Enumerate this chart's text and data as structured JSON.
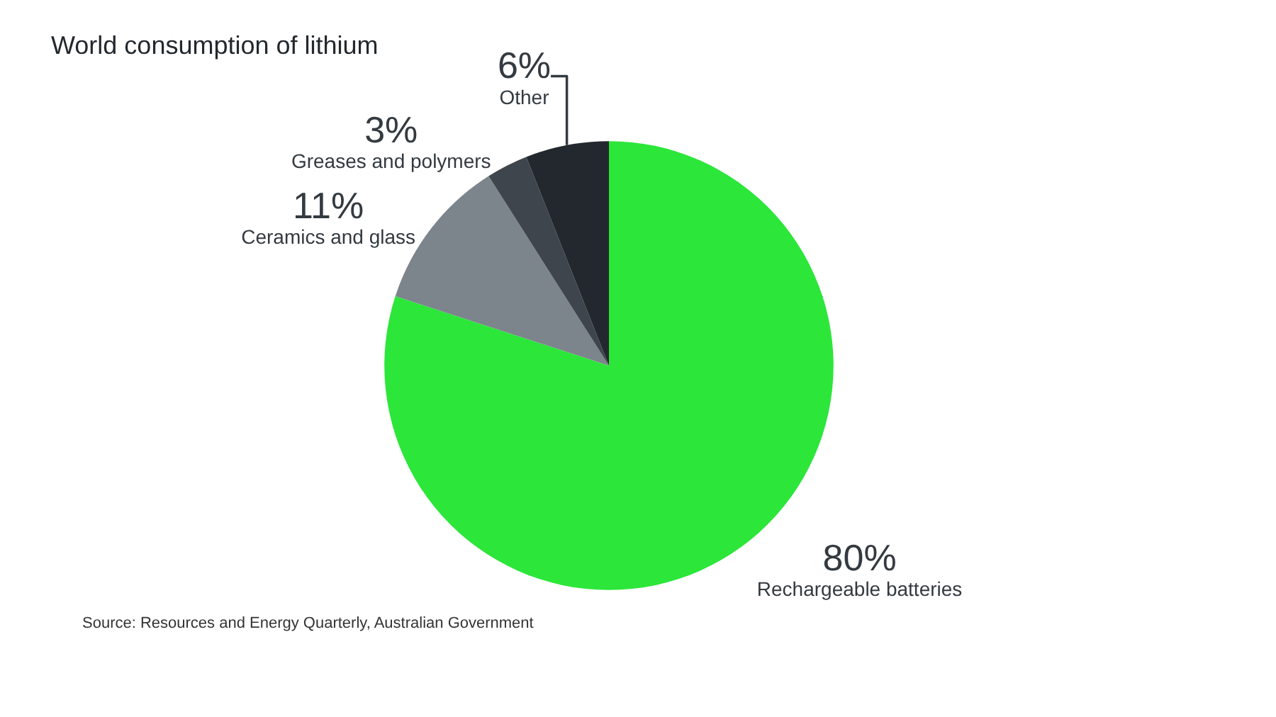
{
  "chart_data": {
    "type": "pie",
    "title": "World consumption of lithium",
    "categories": [
      "Rechargeable batteries",
      "Ceramics and glass",
      "Greases and polymers",
      "Other"
    ],
    "values": [
      80,
      11,
      3,
      6
    ],
    "value_labels": [
      "80%",
      "11%",
      "3%",
      "6%"
    ],
    "colors": [
      "#2ce63a",
      "#7c848c",
      "#3e454d",
      "#23282e"
    ],
    "legend": false,
    "annotations": [
      "Source: Resources and Energy Quarterly, Australian Government"
    ]
  }
}
